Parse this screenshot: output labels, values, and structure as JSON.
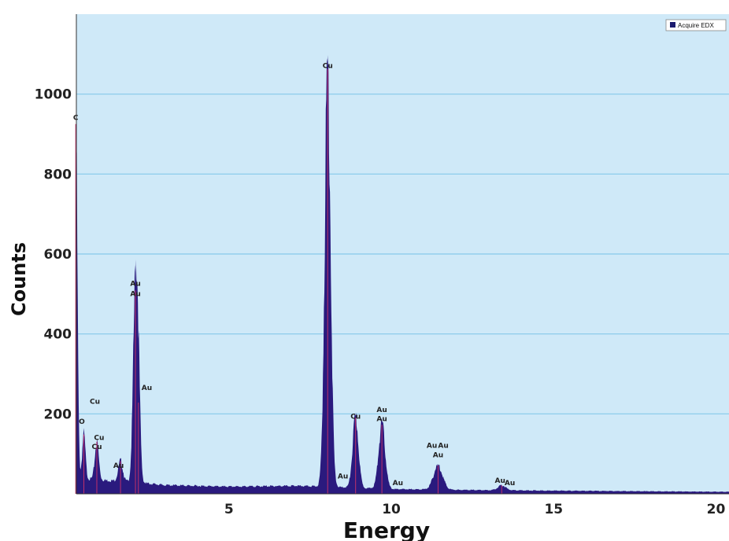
{
  "colors": {
    "plot_background": "#cfe9f8",
    "gridline": "#86c9ea",
    "spectrum_fill": "#2a1a7e",
    "peak_marker": "#c0306a",
    "legend_swatch": "#1a1a6e"
  },
  "chart_data": {
    "type": "area",
    "title": "",
    "xlabel": "Energy",
    "ylabel": "Counts",
    "xlim": [
      0.3,
      20.4
    ],
    "ylim": [
      0,
      1200
    ],
    "x_ticks": [
      5,
      10,
      15,
      20
    ],
    "y_ticks": [
      200,
      400,
      600,
      800,
      1000
    ],
    "grid": "horizontal",
    "legend": {
      "position": "top-right",
      "entries": [
        "Acquire EDX"
      ]
    },
    "series": [
      {
        "name": "Acquire EDX",
        "peaks": [
          {
            "label": "C",
            "energy": 0.28,
            "counts": 920,
            "width": 0.05
          },
          {
            "label": "O",
            "energy": 0.53,
            "counts": 110,
            "width": 0.05
          },
          {
            "label": "Cu",
            "energy": 0.93,
            "counts": 95,
            "width": 0.06
          },
          {
            "label": "Au",
            "energy": 1.66,
            "counts": 50,
            "width": 0.07
          },
          {
            "label": "Au",
            "energy": 2.12,
            "counts": 480,
            "width": 0.07
          },
          {
            "label": "Au",
            "energy": 2.21,
            "counts": 200,
            "width": 0.06
          },
          {
            "label": "Cu",
            "energy": 8.04,
            "counts": 1045,
            "width": 0.09
          },
          {
            "label": "Cu",
            "energy": 8.9,
            "counts": 175,
            "width": 0.09
          },
          {
            "label": "Au",
            "energy": 9.71,
            "counts": 160,
            "width": 0.1
          },
          {
            "label": "Au",
            "energy": 11.44,
            "counts": 60,
            "width": 0.14
          },
          {
            "label": "Au",
            "energy": 13.4,
            "counts": 12,
            "width": 0.12
          }
        ],
        "background": [
          [
            0.3,
            40
          ],
          [
            1,
            35
          ],
          [
            2,
            30
          ],
          [
            3,
            22
          ],
          [
            5,
            18
          ],
          [
            7,
            20
          ],
          [
            8,
            18
          ],
          [
            10,
            12
          ],
          [
            12,
            10
          ],
          [
            15,
            8
          ],
          [
            20.4,
            5
          ]
        ]
      }
    ],
    "annotations": [
      {
        "text": "C",
        "energy": 0.28,
        "counts": 935
      },
      {
        "text": "O",
        "energy": 0.47,
        "counts": 175
      },
      {
        "text": "Cu",
        "energy": 0.87,
        "counts": 225
      },
      {
        "text": "Cu",
        "energy": 1.0,
        "counts": 135
      },
      {
        "text": "Cu",
        "energy": 0.93,
        "counts": 112
      },
      {
        "text": "Au",
        "energy": 1.6,
        "counts": 65
      },
      {
        "text": "Au",
        "energy": 2.12,
        "counts": 520
      },
      {
        "text": "Au",
        "energy": 2.12,
        "counts": 495
      },
      {
        "text": "Au",
        "energy": 2.47,
        "counts": 260
      },
      {
        "text": "Cu",
        "energy": 8.04,
        "counts": 1065
      },
      {
        "text": "Au",
        "energy": 8.51,
        "counts": 38
      },
      {
        "text": "Cu",
        "energy": 8.9,
        "counts": 188
      },
      {
        "text": "Au",
        "energy": 9.71,
        "counts": 205
      },
      {
        "text": "Au",
        "energy": 9.71,
        "counts": 182
      },
      {
        "text": "Au",
        "energy": 10.2,
        "counts": 22
      },
      {
        "text": "Au",
        "energy": 11.25,
        "counts": 115
      },
      {
        "text": "Au",
        "energy": 11.6,
        "counts": 115
      },
      {
        "text": "Au",
        "energy": 11.44,
        "counts": 91
      },
      {
        "text": "Au",
        "energy": 13.35,
        "counts": 28
      },
      {
        "text": "Au",
        "energy": 13.65,
        "counts": 22
      }
    ]
  }
}
